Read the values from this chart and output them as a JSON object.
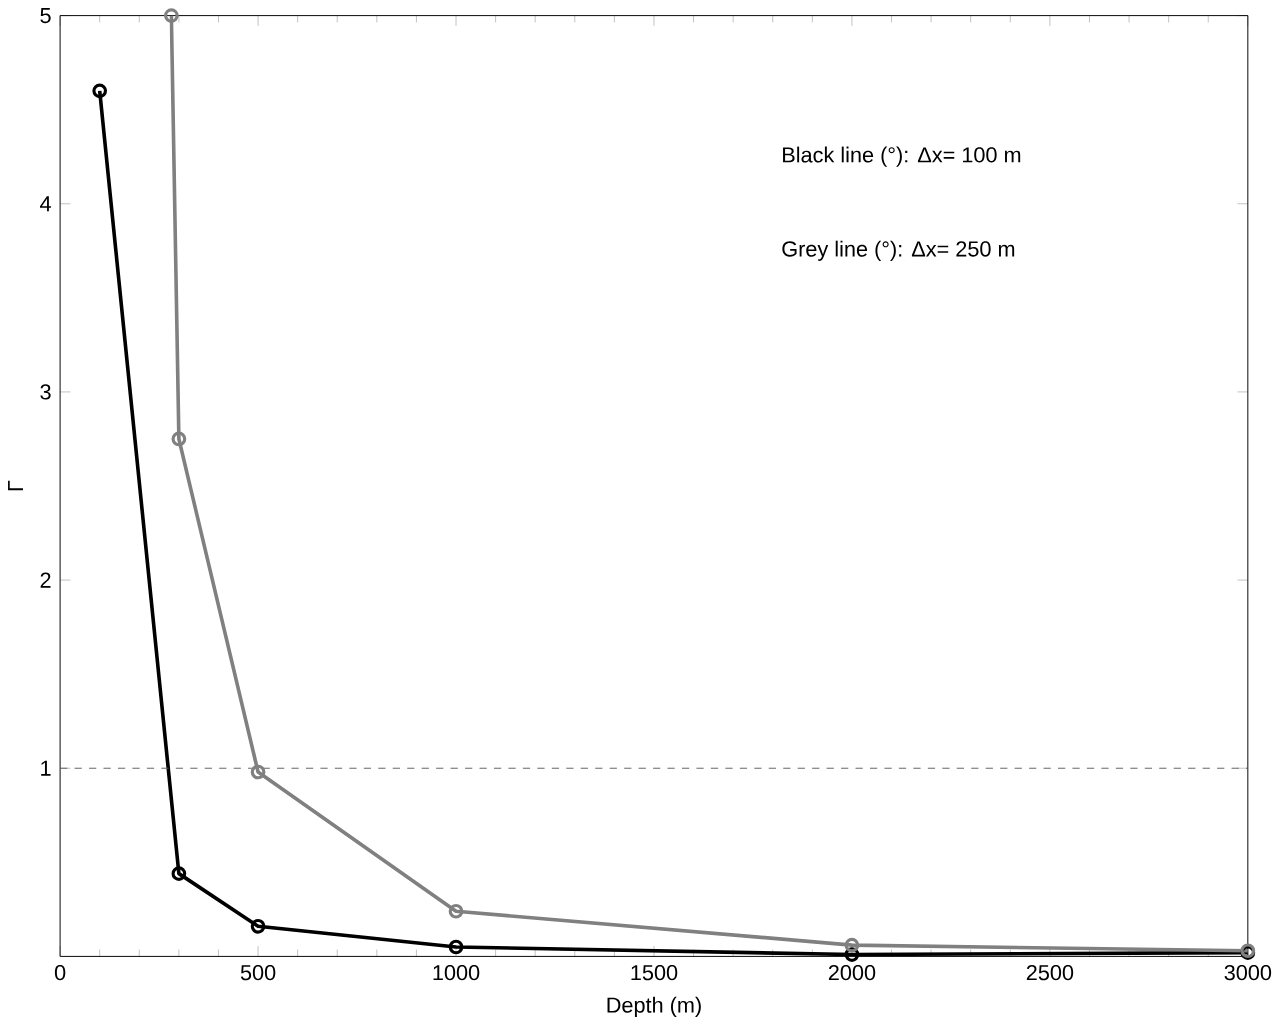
{
  "chart_data": {
    "type": "line",
    "xlabel": "Depth (m)",
    "ylabel": "Γ",
    "series": [
      {
        "color": "#000000",
        "x": [
          100,
          300,
          500,
          1000,
          2000,
          3000
        ],
        "values": [
          4.6,
          0.44,
          0.16,
          0.05,
          0.01,
          0.02
        ]
      },
      {
        "color": "#808080",
        "x": [
          281,
          300,
          500,
          1000,
          2000,
          3000
        ],
        "values": [
          5,
          2.75,
          0.98,
          0.24,
          0.06,
          0.03
        ]
      }
    ],
    "xlim": [
      0,
      3000
    ],
    "ylim": [
      0,
      5
    ],
    "xticks": [
      0,
      500,
      1000,
      1500,
      2000,
      2500,
      3000
    ],
    "yticks": [
      1,
      2,
      3,
      4,
      5
    ],
    "marker": "circle",
    "line_style": "solid",
    "grid": false,
    "ref_lines": [
      {
        "axis": "y",
        "value": 1,
        "line_style": "dashed",
        "color": "#606060"
      }
    ],
    "annotations": [
      "Black line (°): Δx= 100 m",
      "Grey line (°): Δx= 250 m"
    ]
  }
}
